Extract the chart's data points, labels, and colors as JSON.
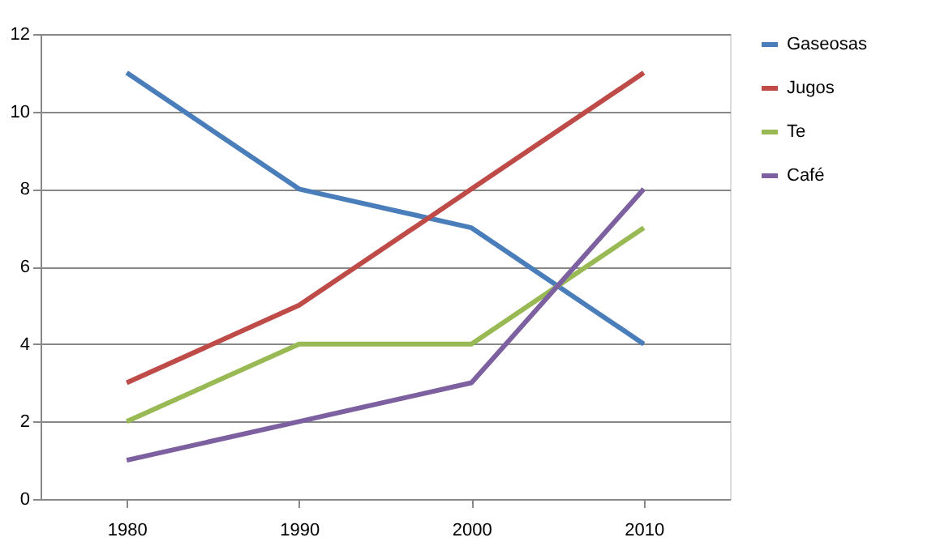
{
  "chart_data": {
    "type": "line",
    "categories": [
      "1980",
      "1990",
      "2000",
      "2010"
    ],
    "series": [
      {
        "name": "Gaseosas",
        "color": "#4a7ebb",
        "values": [
          11,
          8,
          7,
          4
        ]
      },
      {
        "name": "Jugos",
        "color": "#be4b48",
        "values": [
          3,
          5,
          8,
          11
        ]
      },
      {
        "name": "Te",
        "color": "#98b954",
        "values": [
          2,
          4,
          4,
          7
        ]
      },
      {
        "name": "Café",
        "color": "#7d60a0",
        "values": [
          1,
          2,
          3,
          8
        ]
      }
    ],
    "ylim": [
      0,
      12
    ],
    "yticks": [
      0,
      2,
      4,
      6,
      8,
      10,
      12
    ],
    "grid": "y",
    "legend": "right",
    "marker": "none",
    "line_style": "solid"
  }
}
